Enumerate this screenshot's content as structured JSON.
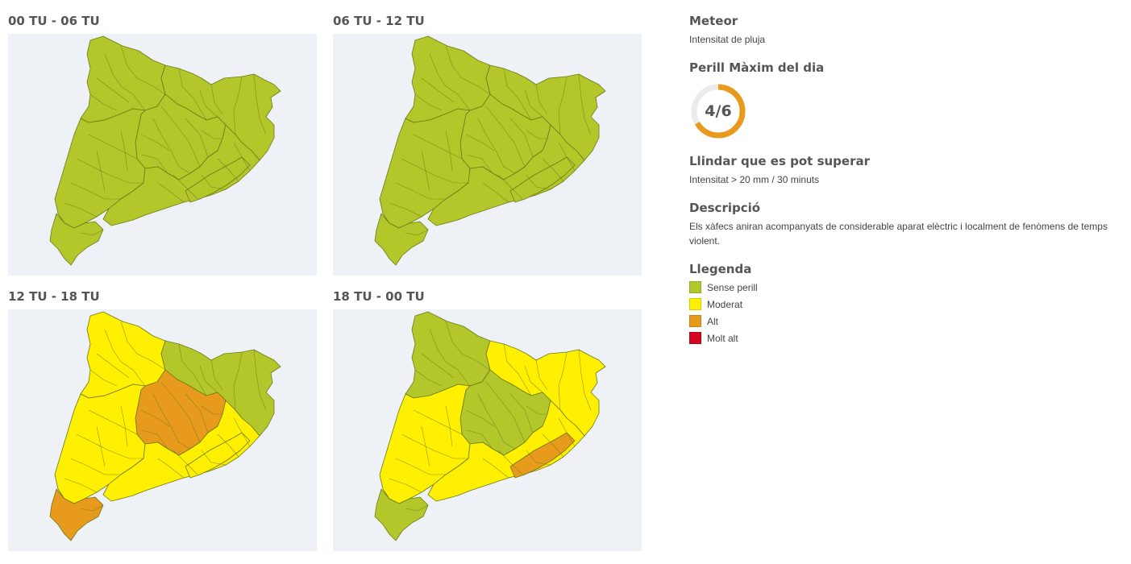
{
  "colors": {
    "sense_perill": "#b3c72b",
    "moderat": "#ffef00",
    "alt": "#e89a1c",
    "molt_alt": "#d3071e",
    "map_background": "#eef1f5",
    "border": "#6b7a14"
  },
  "maps": [
    {
      "title": "00 TU - 06 TU",
      "levels": {
        "north": "sense_perill",
        "central": "sense_perill",
        "northeast": "sense_perill",
        "south": "sense_perill",
        "coast": "sense_perill",
        "barcelona": "sense_perill",
        "ebre": "sense_perill"
      }
    },
    {
      "title": "06 TU - 12 TU",
      "levels": {
        "north": "sense_perill",
        "central": "sense_perill",
        "northeast": "sense_perill",
        "south": "sense_perill",
        "coast": "sense_perill",
        "barcelona": "sense_perill",
        "ebre": "sense_perill"
      }
    },
    {
      "title": "12 TU - 18 TU",
      "levels": {
        "north": "moderat",
        "central": "alt",
        "northeast": "sense_perill",
        "south": "moderat",
        "coast": "moderat",
        "barcelona": "moderat",
        "ebre": "alt"
      }
    },
    {
      "title": "18 TU - 00 TU",
      "levels": {
        "north": "sense_perill",
        "central": "sense_perill",
        "northeast": "moderat",
        "south": "moderat",
        "coast": "moderat",
        "barcelona": "alt",
        "ebre": "sense_perill"
      }
    }
  ],
  "info": {
    "meteor_heading": "Meteor",
    "meteor_value": "Intensitat de pluja",
    "perill_heading": "Perill Màxim del dia",
    "perill_value": "4/6",
    "perill_level": 4,
    "perill_max": 6,
    "perill_color": "#e89a1c",
    "llindar_heading": "Llindar que es pot superar",
    "llindar_value": "Intensitat > 20 mm / 30 minuts",
    "descripcio_heading": "Descripció",
    "descripcio_value": "Els xàfecs aniran acompanyats de considerable aparat elèctric i localment de fenòmens de temps violent.",
    "llegenda_heading": "Llegenda"
  },
  "legend": [
    {
      "label": "Sense perill",
      "key": "sense_perill"
    },
    {
      "label": "Moderat",
      "key": "moderat"
    },
    {
      "label": "Alt",
      "key": "alt"
    },
    {
      "label": "Molt alt",
      "key": "molt_alt"
    }
  ]
}
